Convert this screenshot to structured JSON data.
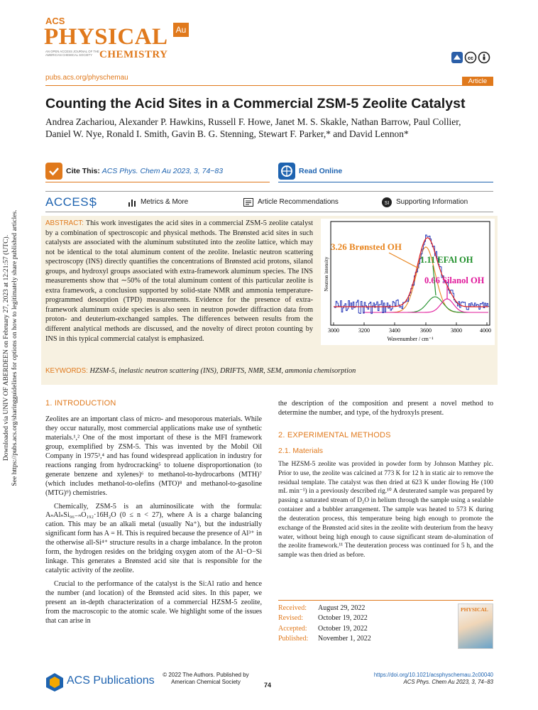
{
  "journal": {
    "acs": "ACS",
    "physical": "PHYSICAL",
    "chemistry": "CHEMISTRY",
    "badge": "Au",
    "tagline": "AN OPEN ACCESS JOURNAL OF THE AMERICAN CHEMICAL SOCIETY"
  },
  "header": {
    "url": "pubs.acs.org/physchemau",
    "article_type": "Article"
  },
  "title": "Counting the Acid Sites in a Commercial ZSM-5 Zeolite Catalyst",
  "authors": "Andrea Zachariou, Alexander P. Hawkins, Russell F. Howe, Janet M. S. Skakle, Nathan Barrow, Paul Collier, Daniel W. Nye, Ronald I. Smith, Gavin B. G. Stenning, Stewart F. Parker,* and David Lennon*",
  "cite": {
    "label": "Cite This:",
    "text": "ACS Phys. Chem Au 2023, 3, 74−83"
  },
  "read_online": "Read Online",
  "access": {
    "label": "ACCESS",
    "items": [
      "Metrics & More",
      "Article Recommendations",
      "Supporting Information"
    ]
  },
  "abstract": {
    "label": "ABSTRACT:",
    "text": "This work investigates the acid sites in a commercial ZSM-5 zeolite catalyst by a combination of spectroscopic and physical methods. The Brønsted acid sites in such catalysts are associated with the aluminum substituted into the zeolite lattice, which may not be identical to the total aluminum content of the zeolite. Inelastic neutron scattering spectroscopy (INS) directly quantifies the concentrations of Brønsted acid protons, silanol groups, and hydroxyl groups associated with extra-framework aluminum species. The INS measurements show that ∼50% of the total aluminum content of this particular zeolite is extra framework, a conclusion supported by solid-state NMR and ammonia temperature-programmed desorption (TPD) measurements. Evidence for the presence of extra-framework aluminum oxide species is also seen in neutron powder diffraction data from proton- and deuterium-exchanged samples. The differences between results from the different analytical methods are discussed, and the novelty of direct proton counting by INS in this typical commercial catalyst is emphasized."
  },
  "graphic": {
    "labels": [
      "3.26 Brønsted OH",
      "1.11 EFAl OH",
      "0.66 Silanol OH"
    ],
    "y_label": "Neutron intensity",
    "x_label": "Wavenumber / cm⁻¹",
    "x_ticks": [
      "3000",
      "3200",
      "3400",
      "3600",
      "3800",
      "4000"
    ]
  },
  "keywords": {
    "label": "KEYWORDS:",
    "text": "HZSM-5, inelastic neutron scattering (INS), DRIFTS, NMR, SEM, ammonia chemisorption"
  },
  "side_note": [
    "Downloaded via UNIV OF ABERDEEN on February 27, 2023 at 12:21:57 (UTC).",
    "See https://pubs.acs.org/sharingguidelines for options on how to legitimately share published articles."
  ],
  "sections": [
    {
      "heading": "1. INTRODUCTION",
      "paragraphs": [
        "Zeolites are an important class of micro- and mesoporous materials. While they occur naturally, most commercial applications make use of synthetic materials.¹,² One of the most important of these is the MFI framework group, exemplified by ZSM-5. This was invented by the Mobil Oil Company in 1975³,⁴ and has found widespread application in industry for reactions ranging from hydrocracking⁵ to toluene disproportionation (to generate benzene and xylenes)⁶ to methanol-to-hydrocarbons (MTH)⁷ (which includes methanol-to-olefins (MTO)⁸ and methanol-to-gasoline (MTG)⁹) chemistries.",
        "Chemically, ZSM-5 is an aluminosilicate with the formula: AₙAlₙSi₉₆₋ₙO₁₉₂·16H₂O (0 ≤ n < 27), where A is a charge balancing cation. This may be an alkali metal (usually Na⁺), but the industrially significant form has A = H. This is required because the presence of Al³⁺ in the otherwise all-Si⁴⁺ structure results in a charge imbalance. In the proton form, the hydrogen resides on the bridging oxygen atom of the Al−O−Si linkage. This generates a Brønsted acid site that is responsible for the catalytic activity of the zeolite.",
        "Crucial to the performance of the catalyst is the Si:Al ratio and hence the number (and location) of the Brønsted acid sites. In this paper, we present an in-depth characterization of a commercial HZSM-5 zeolite, from the macroscopic to the atomic scale. We highlight some of the issues that can arise in",
        "the description of the composition and present a novel method to determine the number, and type, of the hydroxyls present."
      ]
    },
    {
      "heading": "2. EXPERIMENTAL METHODS",
      "subheading": "2.1. Materials",
      "paragraphs": [
        "The HZSM-5 zeolite was provided in powder form by Johnson Matthey plc. Prior to use, the zeolite was calcined at 773 K for 12 h in static air to remove the residual template. The catalyst was then dried at 623 K under flowing He (100 mL min⁻¹) in a previously described rig.¹⁰ A deuterated sample was prepared by passing a saturated stream of D₂O in helium through the sample using a sealable container and a bubbler arrangement. The sample was heated to 573 K during the deuteration process, this temperature being high enough to promote the exchange of the Brønsted acid sites in the zeolite with deuterium from the heavy water, without being high enough to cause significant steam de-alumination of the zeolite framework.¹¹ The deuteration process was continued for 5 h, and the sample was then dried as before."
      ]
    }
  ],
  "dates": [
    [
      "Received:",
      "August 29, 2022"
    ],
    [
      "Revised:",
      "October 19, 2022"
    ],
    [
      "Accepted:",
      "October 19, 2022"
    ],
    [
      "Published:",
      "November 1, 2022"
    ]
  ],
  "cover_thumb": "PHYSICAL",
  "footer": {
    "publisher": "ACS Publications",
    "copyright": [
      "© 2022 The Authors. Published by",
      "American Chemical Society"
    ],
    "page": "74",
    "doi": "https://doi.org/10.1021/acsphyschemau.2c00040",
    "citation": "ACS Phys. Chem Au 2023, 3, 74−83"
  }
}
